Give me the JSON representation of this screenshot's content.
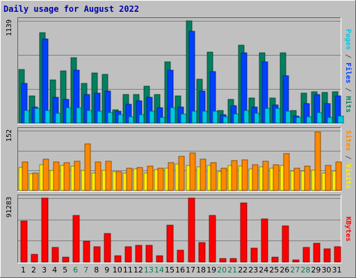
{
  "chart_data": {
    "type": "bar",
    "title": "Daily usage for August 2022",
    "days": [
      "1",
      "2",
      "3",
      "4",
      "5",
      "6",
      "7",
      "8",
      "9",
      "10",
      "11",
      "12",
      "13",
      "14",
      "15",
      "16",
      "17",
      "18",
      "19",
      "20",
      "21",
      "22",
      "23",
      "24",
      "25",
      "26",
      "27",
      "28",
      "29",
      "30",
      "31"
    ],
    "weekend_days": [
      "6",
      "7",
      "13",
      "14",
      "20",
      "21",
      "27",
      "28"
    ],
    "panels": [
      {
        "id": "hits",
        "ymax": 1139,
        "ymax_label": "1139",
        "right_label_parts": [
          {
            "text": "Pages",
            "color": "#00c8e0"
          },
          {
            "text": " / ",
            "color": "#505050"
          },
          {
            "text": "Files",
            "color": "#0040ff"
          },
          {
            "text": " / ",
            "color": "#505050"
          },
          {
            "text": "Hits",
            "color": "#008060"
          }
        ],
        "series": [
          {
            "name": "Hits",
            "color": "#008060",
            "values": [
              600,
              300,
              1010,
              480,
              580,
              730,
              440,
              560,
              540,
              150,
              320,
              320,
              410,
              320,
              680,
              300,
              1139,
              490,
              790,
              140,
              260,
              870,
              280,
              780,
              280,
              780,
              140,
              330,
              350,
              340,
              350
            ]
          },
          {
            "name": "Files",
            "color": "#0040ff",
            "values": [
              440,
              180,
              940,
              290,
              260,
              590,
              320,
              330,
              360,
              130,
              210,
              250,
              290,
              170,
              590,
              180,
              1020,
              360,
              570,
              90,
              190,
              780,
              180,
              680,
              200,
              530,
              80,
              220,
              320,
              220,
              300
            ]
          },
          {
            "name": "Pages",
            "color": "#00c8e0",
            "values": [
              140,
              160,
              140,
              110,
              170,
              170,
              140,
              130,
              120,
              90,
              70,
              90,
              130,
              60,
              170,
              100,
              130,
              130,
              130,
              70,
              100,
              140,
              110,
              160,
              160,
              130,
              60,
              70,
              120,
              60,
              80
            ]
          }
        ]
      },
      {
        "id": "visits",
        "ymax": 152,
        "ymax_label": "152",
        "right_label_parts": [
          {
            "text": "Sites",
            "color": "#ff8800"
          },
          {
            "text": " / ",
            "color": "#505050"
          },
          {
            "text": "Visits",
            "color": "#ffee00"
          }
        ],
        "series": [
          {
            "name": "Visits",
            "color": "#ffee00",
            "values": [
              58,
              43,
              65,
              52,
              64,
              62,
              52,
              45,
              52,
              48,
              45,
              55,
              45,
              53,
              57,
              68,
              64,
              60,
              63,
              48,
              63,
              61,
              55,
              60,
              57,
              63,
              50,
              50,
              52,
              45,
              50
            ]
          },
          {
            "name": "Sites",
            "color": "#ff8800",
            "values": [
              73,
              45,
              79,
              72,
              71,
              74,
              118,
              72,
              74,
              47,
              57,
              58,
              61,
              57,
              71,
              86,
              96,
              79,
              71,
              57,
              76,
              77,
              65,
              75,
              66,
              94,
              57,
              61,
              148,
              63,
              72
            ]
          }
        ]
      },
      {
        "id": "kbytes",
        "ymax": 91283,
        "ymax_label": "91283",
        "right_label_parts": [
          {
            "text": "KBytes",
            "color": "#ff0000"
          }
        ],
        "series": [
          {
            "name": "KBytes",
            "color": "#ff0000",
            "values": [
              59000,
              11000,
              91283,
              21000,
              7000,
              66000,
              30000,
              22000,
              41000,
              9000,
              22000,
              24000,
              24000,
              9000,
              53000,
              17000,
              91283,
              28000,
              66000,
              4500,
              4500,
              84000,
              20000,
              62000,
              7000,
              52000,
              3000,
              21000,
              27000,
              19000,
              22000
            ]
          }
        ]
      }
    ]
  }
}
